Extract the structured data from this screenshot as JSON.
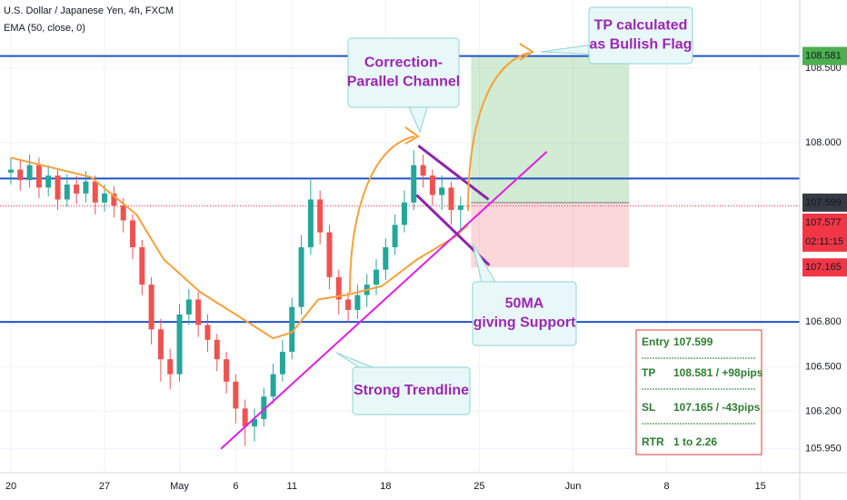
{
  "chart_data": {
    "type": "candlestick",
    "title": "U.S. Dollar / Japanese Yen, 4h, FXCM",
    "indicator": "EMA (50, close, 0)",
    "x": [
      0,
      0.5,
      1,
      1.5,
      2,
      2.5,
      3,
      3.5,
      4,
      4.5,
      5,
      5.5,
      6,
      6.5,
      7,
      7.5,
      8,
      8.5,
      9,
      9.5,
      10,
      10.5,
      11,
      11.5,
      12,
      12.5,
      13,
      13.5,
      14,
      14.5,
      15,
      15.5,
      16,
      16.5,
      17,
      17.5,
      18,
      18.5,
      19,
      19.5,
      20,
      20.5,
      21,
      21.5,
      22,
      22.5,
      23,
      23.5,
      24
    ],
    "open": [
      107.8,
      107.82,
      107.75,
      107.85,
      107.7,
      107.78,
      107.62,
      107.72,
      107.66,
      107.74,
      107.6,
      107.66,
      107.58,
      107.48,
      107.3,
      107.05,
      106.75,
      106.55,
      106.45,
      106.85,
      106.95,
      106.78,
      106.68,
      106.55,
      106.4,
      106.22,
      106.1,
      106.15,
      106.3,
      106.45,
      106.6,
      106.9,
      107.3,
      107.62,
      107.4,
      107.1,
      106.95,
      106.88,
      106.98,
      107.05,
      107.15,
      107.3,
      107.45,
      107.6,
      107.85,
      107.78,
      107.65,
      107.7,
      107.55
    ],
    "high": [
      107.9,
      107.89,
      107.92,
      107.9,
      107.85,
      107.82,
      107.79,
      107.78,
      107.81,
      107.78,
      107.72,
      107.71,
      107.63,
      107.52,
      107.35,
      107.1,
      106.82,
      106.62,
      106.92,
      107.02,
      107.0,
      106.85,
      106.72,
      106.6,
      106.45,
      106.28,
      106.22,
      106.36,
      106.52,
      106.68,
      106.96,
      107.38,
      107.75,
      107.68,
      107.45,
      107.15,
      107.0,
      107.05,
      107.12,
      107.22,
      107.36,
      107.52,
      107.68,
      107.95,
      107.92,
      107.82,
      107.78,
      107.74,
      107.64
    ],
    "low": [
      107.72,
      107.68,
      107.7,
      107.63,
      107.64,
      107.55,
      107.57,
      107.59,
      107.6,
      107.52,
      107.54,
      107.5,
      107.4,
      107.22,
      106.98,
      106.65,
      106.4,
      106.35,
      106.4,
      106.78,
      106.7,
      106.6,
      106.47,
      106.32,
      106.12,
      105.97,
      106.0,
      106.1,
      106.25,
      106.4,
      106.55,
      106.85,
      107.25,
      107.32,
      107.02,
      106.85,
      106.8,
      106.82,
      106.9,
      106.98,
      107.08,
      107.25,
      107.4,
      107.55,
      107.7,
      107.58,
      107.55,
      107.45,
      107.4
    ],
    "close": [
      107.82,
      107.75,
      107.85,
      107.7,
      107.78,
      107.62,
      107.72,
      107.66,
      107.74,
      107.6,
      107.66,
      107.58,
      107.48,
      107.3,
      107.05,
      106.75,
      106.55,
      106.45,
      106.85,
      106.95,
      106.78,
      106.68,
      106.55,
      106.4,
      106.22,
      106.1,
      106.15,
      106.3,
      106.45,
      106.6,
      106.9,
      107.3,
      107.62,
      107.4,
      107.1,
      106.95,
      106.88,
      106.98,
      107.05,
      107.15,
      107.3,
      107.45,
      107.6,
      107.85,
      107.78,
      107.65,
      107.7,
      107.55,
      107.58
    ],
    "up_color": "#26a69a",
    "down_color": "#ef5350",
    "ema": {
      "color": "#f7a13a",
      "x": [
        0,
        4.27,
        6.7,
        8.15,
        10.1,
        12.0,
        14.0,
        15.0,
        16.4,
        17.9,
        19.8,
        21.7,
        23.7,
        24.4
      ],
      "values": [
        107.9,
        107.77,
        107.52,
        107.22,
        107.0,
        106.85,
        106.69,
        106.73,
        106.95,
        106.98,
        107.04,
        107.22,
        107.37,
        107.45
      ]
    },
    "levels": {
      "color": "#1e53c8",
      "values": [
        108.581,
        107.76,
        106.8
      ]
    },
    "last_price_line": {
      "color": "#f23645",
      "value": 107.577
    },
    "trendline": {
      "color": "#e020e0",
      "x": [
        11.21,
        28.6
      ],
      "values": [
        105.95,
        107.94
      ]
    },
    "channel": {
      "color": "#8e24aa",
      "lines": [
        {
          "x": [
            21.75,
            25.49
          ],
          "values": [
            107.98,
            107.62
          ]
        },
        {
          "x": [
            21.65,
            25.53
          ],
          "values": [
            107.65,
            107.18
          ]
        }
      ]
    },
    "position": {
      "x": [
        24.56,
        33.0
      ],
      "entry": 107.599,
      "tp": 108.581,
      "sl": 107.165,
      "profit_color": "rgba(76,175,80,0.25)",
      "loss_color": "rgba(242,54,69,0.2)"
    },
    "xlim": [
      -0.58,
      42.1
    ],
    "ylim": [
      105.79,
      108.956
    ],
    "xticks": [
      {
        "value": 0,
        "label": "20"
      },
      {
        "value": 5,
        "label": "27"
      },
      {
        "value": 9,
        "label": "May"
      },
      {
        "value": 12,
        "label": "6"
      },
      {
        "value": 15,
        "label": "11"
      },
      {
        "value": 20,
        "label": "18"
      },
      {
        "value": 25,
        "label": "25"
      },
      {
        "value": 30,
        "label": "Jun"
      },
      {
        "value": 35,
        "label": "8"
      },
      {
        "value": 40,
        "label": "15"
      }
    ],
    "yticks": [
      {
        "value": 108.5,
        "label": "108.500"
      },
      {
        "value": 108,
        "label": "108.000"
      },
      {
        "value": 106.8,
        "label": "106.800"
      },
      {
        "value": 106.5,
        "label": "106.500"
      },
      {
        "value": 106.2,
        "label": "106.200"
      },
      {
        "value": 105.95,
        "label": "105.950"
      }
    ],
    "grid": true,
    "price_labels": [
      {
        "value": 108.581,
        "label": "108.581",
        "color": "#4caf50"
      },
      {
        "value": 107.599,
        "label": "107.599",
        "color": "#363a45"
      },
      {
        "value": 107.577,
        "label": "107.577",
        "color": "#f23645",
        "countdown": "02:11:15"
      },
      {
        "value": 107.165,
        "label": "107.165",
        "color": "#f23645"
      }
    ],
    "annotations": [
      {
        "lines": [
          "Correction-",
          "Parallel Channel"
        ]
      },
      {
        "lines": [
          "TP calculated",
          "as Bullish Flag"
        ]
      },
      {
        "lines": [
          "50MA",
          "giving Support"
        ]
      },
      {
        "lines": [
          "Strong Trendline"
        ]
      }
    ],
    "info_box": {
      "rows": [
        [
          "Entry",
          "107.599"
        ],
        [
          "TP",
          "108.581 / +98pips"
        ],
        [
          "SL",
          "107.165 / -43pips"
        ],
        [
          "RTR",
          "1 to 2.26"
        ]
      ]
    }
  }
}
